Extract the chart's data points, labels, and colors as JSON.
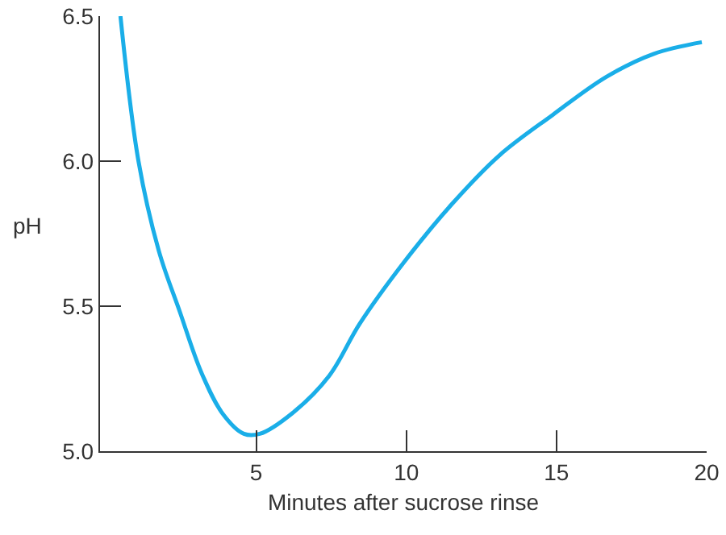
{
  "chart_data": {
    "type": "line",
    "xlabel": "Minutes after sucrose rinse",
    "ylabel": "pH",
    "x": [
      0.48,
      1.08,
      1.76,
      2.46,
      3.18,
      3.88,
      4.59,
      5.12,
      6.19,
      7.43,
      8.45,
      9.91,
      11.5,
      13.1,
      14.88,
      16.65,
      18.24,
      19.84
    ],
    "series": [
      {
        "color": "#1aaee8",
        "values": [
          6.5,
          6.0,
          5.69,
          5.48,
          5.27,
          5.13,
          5.06,
          5.06,
          5.13,
          5.26,
          5.44,
          5.65,
          5.85,
          6.02,
          6.16,
          6.29,
          6.37,
          6.41
        ]
      }
    ],
    "xlim": [
      -0.2,
      20
    ],
    "xticks": [
      5,
      10,
      15,
      20
    ],
    "ylim": [
      5.0,
      6.5
    ],
    "yticks": [
      {
        "value": 5.0,
        "label": "5.0"
      },
      {
        "value": 5.5,
        "label": "5.5"
      },
      {
        "value": 6.0,
        "label": "6.0"
      },
      {
        "value": 6.5,
        "label": "6.5"
      }
    ],
    "grid": false,
    "marker": "none",
    "line_style": "solid"
  }
}
